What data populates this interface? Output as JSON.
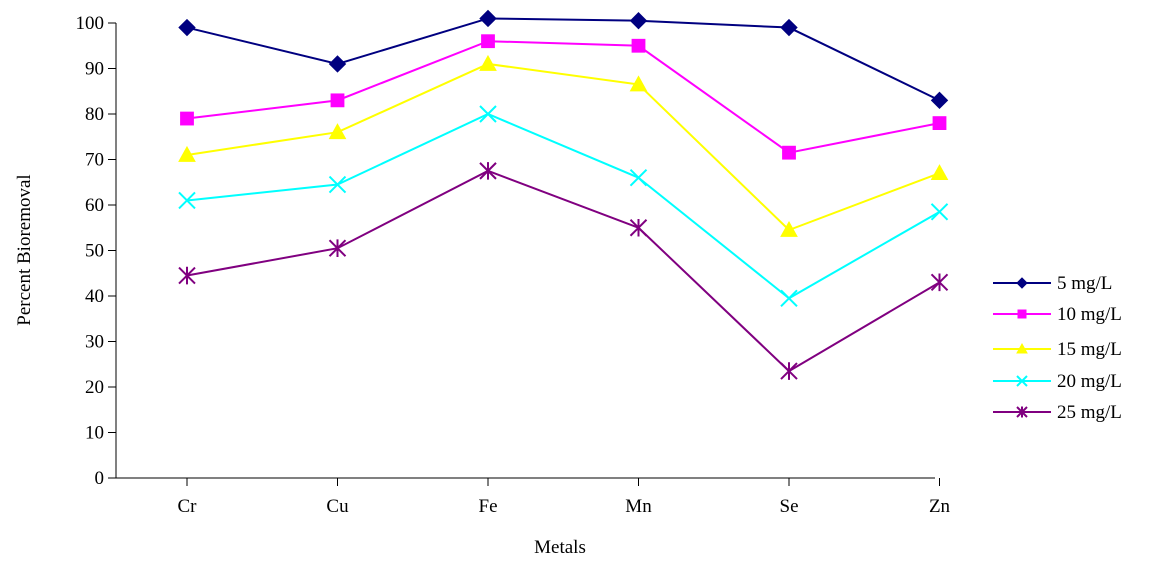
{
  "chart_data": {
    "type": "line",
    "title": "",
    "xlabel": "Metals",
    "ylabel": "Percent Bioremoval",
    "categories": [
      "Cr",
      "Cu",
      "Fe",
      "Mn",
      "Se",
      "Zn"
    ],
    "ylim": [
      0,
      100
    ],
    "yticks": [
      0,
      10,
      20,
      30,
      40,
      50,
      60,
      70,
      80,
      90,
      100
    ],
    "grid": false,
    "legend_position": "right",
    "series": [
      {
        "name": "5 mg/L",
        "color": "#000080",
        "marker": "diamond",
        "values": [
          99,
          91,
          101,
          100.5,
          99,
          83
        ]
      },
      {
        "name": "10 mg/L",
        "color": "#FF00FF",
        "marker": "square",
        "values": [
          79,
          83,
          96,
          95,
          71.5,
          78
        ]
      },
      {
        "name": "15 mg/L",
        "color": "#FFFF00",
        "marker": "triangle",
        "values": [
          71,
          76,
          91,
          86.5,
          54.5,
          67
        ]
      },
      {
        "name": "20 mg/L",
        "color": "#00FFFF",
        "marker": "x",
        "values": [
          61,
          64.5,
          80,
          66,
          39.5,
          58.5
        ]
      },
      {
        "name": "25 mg/L",
        "color": "#800080",
        "marker": "asterisk",
        "values": [
          44.5,
          50.5,
          67.5,
          55,
          23.5,
          43
        ]
      }
    ]
  }
}
